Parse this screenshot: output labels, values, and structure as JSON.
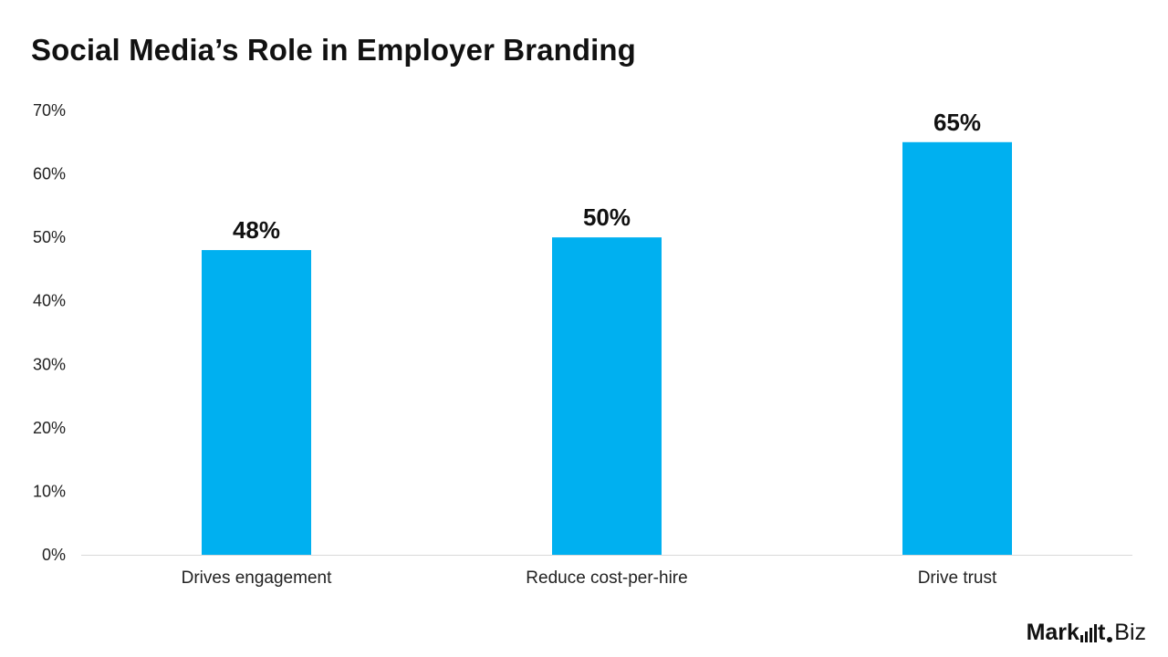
{
  "chart_data": {
    "type": "bar",
    "title": "Social Media’s Role in Employer Branding",
    "categories": [
      "Drives engagement",
      "Reduce cost-per-hire",
      "Drive trust"
    ],
    "values": [
      48,
      50,
      65
    ],
    "data_labels": [
      "48%",
      "50%",
      "65%"
    ],
    "ylim": [
      0,
      70
    ],
    "yticks": [
      0,
      10,
      20,
      30,
      40,
      50,
      60,
      70
    ],
    "ytick_labels": [
      "0%",
      "10%",
      "20%",
      "30%",
      "40%",
      "50%",
      "60%",
      "70%"
    ],
    "xlabel": "",
    "ylabel": "",
    "grid": false,
    "bar_color": "#00B0F0"
  },
  "brand": {
    "part1": "Mark",
    "part2": "t",
    "part3": "Biz"
  }
}
